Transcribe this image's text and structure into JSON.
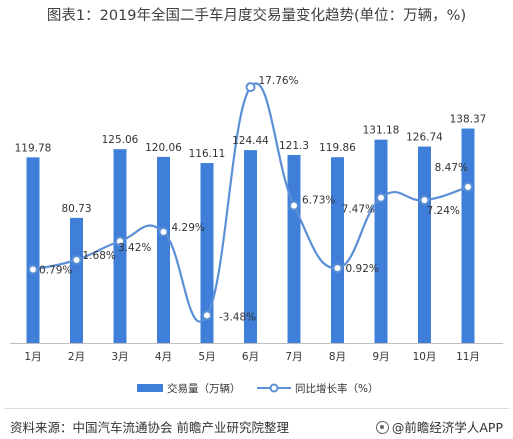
{
  "title": "图表1：2019年全国二手车月度交易量变化趋势(单位：万辆，%)",
  "footer": {
    "source": "资料来源：中国汽车流通协会 前瞻产业研究院整理",
    "brand": "@前瞻经济学人APP"
  },
  "colors": {
    "bar": "#3F7FD9",
    "line": "#5B8FD6",
    "axis": "#bfbfbf",
    "text": "#333333"
  },
  "chart_data": {
    "type": "bar",
    "categories": [
      "1月",
      "2月",
      "3月",
      "4月",
      "5月",
      "6月",
      "7月",
      "8月",
      "9月",
      "10月",
      "11月"
    ],
    "series": [
      {
        "name": "交易量（万辆）",
        "type": "bar",
        "axis": "left",
        "values": [
          119.78,
          80.73,
          125.06,
          120.06,
          116.11,
          124.44,
          121.3,
          119.86,
          131.18,
          126.74,
          138.37
        ],
        "labels": [
          "119.78",
          "80.73",
          "125.06",
          "120.06",
          "116.11",
          "124.44",
          "121.3",
          "119.86",
          "131.18",
          "126.74",
          "138.37"
        ]
      },
      {
        "name": "同比增长率（%）",
        "type": "line",
        "smooth": true,
        "axis": "right",
        "values": [
          0.79,
          1.68,
          3.42,
          4.29,
          -3.48,
          17.76,
          6.73,
          0.92,
          7.47,
          7.24,
          8.47
        ],
        "labels": [
          "0.79%",
          "1.68%",
          "3.42%",
          "4.29%",
          "-3.48%",
          "17.76%",
          "6.73%",
          "0.92%",
          "7.47%",
          "7.24%",
          "8.47%"
        ]
      }
    ],
    "legend": [
      "交易量（万辆）",
      "同比增长率（%）"
    ],
    "legend_position": "bottom",
    "grid": false
  }
}
